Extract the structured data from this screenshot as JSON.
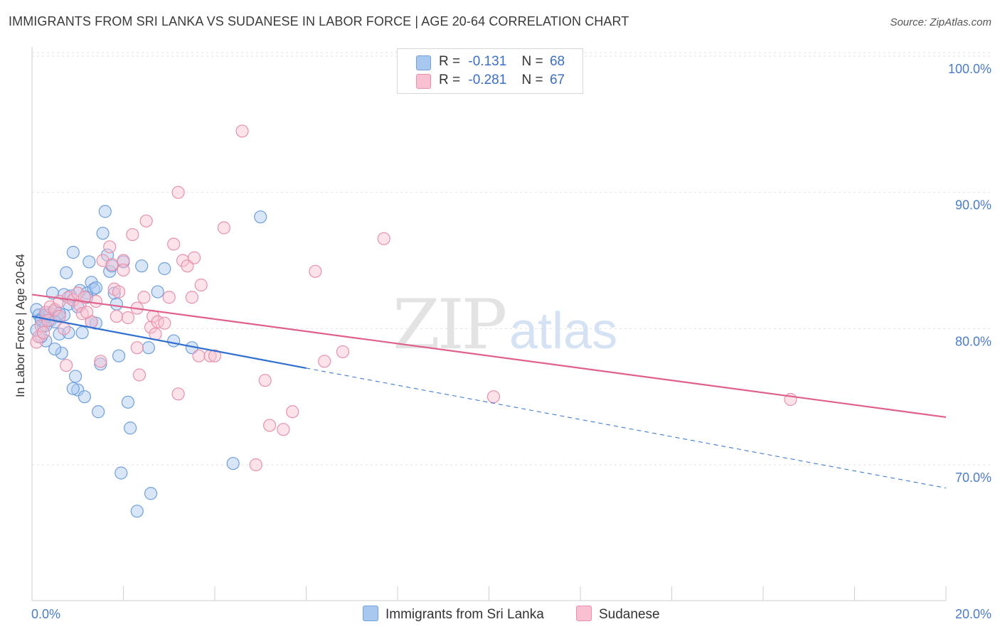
{
  "title": "IMMIGRANTS FROM SRI LANKA VS SUDANESE IN LABOR FORCE | AGE 20-64 CORRELATION CHART",
  "source": "Source: ZipAtlas.com",
  "watermark": {
    "zip": "ZIP",
    "atlas": "atlas"
  },
  "legend": {
    "rows": [
      {
        "r_label": "R =",
        "r_value": "-0.131",
        "n_label": "N =",
        "n_value": "68",
        "color": "#a8c8f0",
        "border": "#6f9fdc"
      },
      {
        "r_label": "R =",
        "r_value": "-0.281",
        "n_label": "N =",
        "n_value": "67",
        "color": "#f8c0d0",
        "border": "#e890ac"
      }
    ]
  },
  "chart_data": {
    "type": "scatter",
    "ylabel": "In Labor Force | Age 20-64",
    "xlabel": "",
    "xlim": [
      0.0,
      20.0
    ],
    "ylim": [
      60.0,
      102.0
    ],
    "x_ticks": [
      "0.0%",
      "20.0%"
    ],
    "y_ticks": [
      {
        "value": 70,
        "label": "70.0%"
      },
      {
        "value": 80,
        "label": "80.0%"
      },
      {
        "value": 90,
        "label": "90.0%"
      },
      {
        "value": 100,
        "label": "100.0%"
      }
    ],
    "grid": true,
    "series": [
      {
        "name": "Immigrants from Sri Lanka",
        "color": "#6f9fdc",
        "fill": "#a8c8f0",
        "trend": {
          "x0": 0.0,
          "y0": 80.9,
          "x1": 6.0,
          "y1": 77.1,
          "dashed_to_x": 20.0,
          "dashed_to_y": 68.3,
          "color": "#2f6fcf"
        },
        "points": [
          [
            0.1,
            81.4
          ],
          [
            0.15,
            81.0
          ],
          [
            0.2,
            80.7
          ],
          [
            0.25,
            80.2
          ],
          [
            0.3,
            81.2
          ],
          [
            0.35,
            80.9
          ],
          [
            0.4,
            81.1
          ],
          [
            0.45,
            82.6
          ],
          [
            0.5,
            81.3
          ],
          [
            0.55,
            80.9
          ],
          [
            0.6,
            79.6
          ],
          [
            0.65,
            78.2
          ],
          [
            0.7,
            82.5
          ],
          [
            0.75,
            84.1
          ],
          [
            0.8,
            81.8
          ],
          [
            0.85,
            82.4
          ],
          [
            0.9,
            85.6
          ],
          [
            0.95,
            76.5
          ],
          [
            1.0,
            75.5
          ],
          [
            1.05,
            82.8
          ],
          [
            1.1,
            79.7
          ],
          [
            1.15,
            75.0
          ],
          [
            1.2,
            82.6
          ],
          [
            1.25,
            84.9
          ],
          [
            1.3,
            83.4
          ],
          [
            1.35,
            82.9
          ],
          [
            1.4,
            80.4
          ],
          [
            1.45,
            73.9
          ],
          [
            1.5,
            77.4
          ],
          [
            1.55,
            87.0
          ],
          [
            1.6,
            88.6
          ],
          [
            1.65,
            85.4
          ],
          [
            1.7,
            84.2
          ],
          [
            1.75,
            84.6
          ],
          [
            1.8,
            82.6
          ],
          [
            1.85,
            81.8
          ],
          [
            1.9,
            78.0
          ],
          [
            1.95,
            69.4
          ],
          [
            2.0,
            84.9
          ],
          [
            2.1,
            74.6
          ],
          [
            2.15,
            72.7
          ],
          [
            2.3,
            66.6
          ],
          [
            2.4,
            84.6
          ],
          [
            2.55,
            78.6
          ],
          [
            2.6,
            67.9
          ],
          [
            2.75,
            82.7
          ],
          [
            2.9,
            84.4
          ],
          [
            3.1,
            79.1
          ],
          [
            3.5,
            78.6
          ],
          [
            5.0,
            88.2
          ],
          [
            4.4,
            70.1
          ],
          [
            0.5,
            78.5
          ],
          [
            0.7,
            81.0
          ],
          [
            0.3,
            79.1
          ],
          [
            0.2,
            79.4
          ],
          [
            0.1,
            79.9
          ],
          [
            0.2,
            80.6
          ],
          [
            0.3,
            81.0
          ],
          [
            0.4,
            80.6
          ],
          [
            0.6,
            81.1
          ],
          [
            0.8,
            79.7
          ],
          [
            1.0,
            81.6
          ],
          [
            1.2,
            82.3
          ],
          [
            1.4,
            83.0
          ],
          [
            0.5,
            80.5
          ],
          [
            0.3,
            80.2
          ],
          [
            0.9,
            75.6
          ],
          [
            1.3,
            80.5
          ]
        ]
      },
      {
        "name": "Sudanese",
        "color": "#e890ac",
        "fill": "#f8c0d0",
        "trend": {
          "x0": 0.0,
          "y0": 82.5,
          "x1": 20.0,
          "y1": 73.5,
          "color": "#e0608c"
        },
        "points": [
          [
            0.1,
            79.0
          ],
          [
            0.15,
            79.4
          ],
          [
            0.2,
            80.2
          ],
          [
            0.25,
            79.7
          ],
          [
            0.3,
            81.2
          ],
          [
            0.35,
            80.6
          ],
          [
            0.4,
            81.6
          ],
          [
            0.5,
            81.4
          ],
          [
            0.6,
            82.0
          ],
          [
            0.7,
            80.0
          ],
          [
            0.75,
            77.3
          ],
          [
            0.8,
            82.3
          ],
          [
            0.9,
            82.1
          ],
          [
            1.0,
            82.6
          ],
          [
            1.05,
            81.7
          ],
          [
            1.1,
            81.1
          ],
          [
            1.15,
            82.3
          ],
          [
            1.3,
            80.5
          ],
          [
            1.4,
            82.0
          ],
          [
            1.5,
            77.6
          ],
          [
            1.55,
            85.0
          ],
          [
            1.7,
            86.0
          ],
          [
            1.75,
            84.7
          ],
          [
            1.8,
            82.9
          ],
          [
            1.85,
            80.9
          ],
          [
            1.9,
            82.7
          ],
          [
            2.0,
            85.0
          ],
          [
            2.1,
            80.8
          ],
          [
            2.2,
            86.9
          ],
          [
            2.3,
            78.6
          ],
          [
            2.35,
            76.6
          ],
          [
            2.45,
            82.3
          ],
          [
            2.5,
            87.9
          ],
          [
            2.6,
            80.1
          ],
          [
            2.65,
            80.9
          ],
          [
            2.7,
            79.6
          ],
          [
            2.75,
            80.5
          ],
          [
            2.9,
            80.4
          ],
          [
            3.0,
            82.3
          ],
          [
            3.1,
            86.2
          ],
          [
            3.2,
            75.2
          ],
          [
            3.3,
            85.0
          ],
          [
            3.4,
            84.6
          ],
          [
            3.5,
            82.3
          ],
          [
            3.55,
            85.2
          ],
          [
            3.65,
            78.0
          ],
          [
            3.7,
            83.2
          ],
          [
            3.9,
            78.0
          ],
          [
            4.0,
            78.0
          ],
          [
            4.2,
            87.4
          ],
          [
            4.6,
            94.5
          ],
          [
            4.9,
            70.0
          ],
          [
            5.1,
            76.2
          ],
          [
            5.2,
            72.9
          ],
          [
            5.5,
            72.6
          ],
          [
            5.7,
            73.9
          ],
          [
            6.2,
            84.2
          ],
          [
            6.4,
            77.6
          ],
          [
            6.8,
            78.3
          ],
          [
            7.7,
            86.6
          ],
          [
            10.1,
            75.0
          ],
          [
            16.6,
            74.8
          ],
          [
            3.2,
            90.0
          ],
          [
            2.3,
            81.5
          ],
          [
            1.2,
            81.2
          ],
          [
            0.6,
            80.9
          ],
          [
            2.0,
            84.3
          ]
        ]
      }
    ]
  },
  "bottom_legend": [
    "Immigrants from Sri Lanka",
    "Sudanese"
  ]
}
